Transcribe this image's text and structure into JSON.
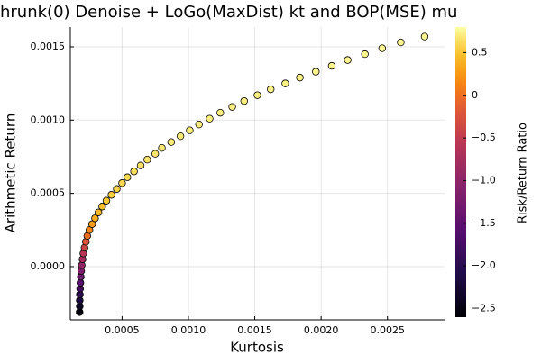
{
  "chart_data": {
    "type": "scatter",
    "title": "hrunk(0) Denoise + LoGo(MaxDist) kt and BOP(MSE) mu",
    "x_label": "Kurtosis",
    "y_label": "Arithmetic Return",
    "colorbar_label": "Risk/Return Ratio",
    "colormap": "inferno",
    "grid": true,
    "marker_edge_color": "#000000",
    "x": [
      0.00018,
      0.000181,
      0.000181,
      0.000182,
      0.000184,
      0.000186,
      0.000189,
      0.000192,
      0.000196,
      0.000202,
      0.000208,
      0.000217,
      0.000227,
      0.000238,
      0.000254,
      0.000274,
      0.000296,
      0.000322,
      0.00035,
      0.000382,
      0.00042,
      0.00046,
      0.0005,
      0.00054,
      0.00059,
      0.00064,
      0.00069,
      0.00075,
      0.0008,
      0.00087,
      0.00094,
      0.00101,
      0.00108,
      0.00116,
      0.00124,
      0.00133,
      0.00142,
      0.00152,
      0.00162,
      0.00173,
      0.00184,
      0.00196,
      0.00208,
      0.0022,
      0.00233,
      0.00246,
      0.0026,
      0.00278
    ],
    "y": [
      -0.00031,
      -0.00027,
      -0.00023,
      -0.00019,
      -0.00015,
      -0.00011,
      -7e-05,
      -3e-05,
      1e-05,
      5e-05,
      9e-05,
      0.00013,
      0.00017,
      0.00021,
      0.00025,
      0.00029,
      0.00033,
      0.00037,
      0.00041,
      0.00045,
      0.00049,
      0.00053,
      0.00057,
      0.00061,
      0.00065,
      0.00069,
      0.00073,
      0.00077,
      0.00081,
      0.00085,
      0.00089,
      0.00093,
      0.00097,
      0.00101,
      0.00105,
      0.00109,
      0.00113,
      0.00117,
      0.00121,
      0.00125,
      0.00129,
      0.00133,
      0.00137,
      0.00141,
      0.00145,
      0.00149,
      0.00153,
      0.00157
    ],
    "color_values": [
      -2.55,
      -2.35,
      -2.16,
      -1.96,
      -1.76,
      -1.57,
      -1.37,
      -1.18,
      -0.98,
      -0.78,
      -0.59,
      -0.39,
      -0.2,
      0,
      0.15,
      0.27,
      0.36,
      0.43,
      0.48,
      0.52,
      0.55,
      0.58,
      0.6,
      0.62,
      0.63,
      0.65,
      0.66,
      0.67,
      0.68,
      0.69,
      0.69,
      0.7,
      0.7,
      0.71,
      0.71,
      0.72,
      0.72,
      0.72,
      0.73,
      0.73,
      0.73,
      0.74,
      0.74,
      0.74,
      0.74,
      0.75,
      0.75,
      0.75
    ],
    "xlim": [
      0.00011,
      0.00293
    ],
    "ylim": [
      -0.000363,
      0.001635
    ],
    "clim": [
      -2.6,
      0.8
    ],
    "xticks": [
      0.0005,
      {
        "value": 0.001,
        "label": "0.0010"
      },
      0.0015,
      {
        "value": 0.002,
        "label": "0.0020"
      },
      0.0025
    ],
    "yticks": [
      {
        "value": 0,
        "label": "0.0000"
      },
      0.0005,
      {
        "value": 0.001,
        "label": "0.0010"
      },
      0.0015
    ],
    "cticks": [
      {
        "value": -2.5,
        "label": "−2.5"
      },
      {
        "value": -2,
        "label": "−2.0"
      },
      {
        "value": -1.5,
        "label": "−1.5"
      },
      {
        "value": -1,
        "label": "−1.0"
      },
      {
        "value": -0.5,
        "label": "−0.5"
      },
      0,
      0.5
    ]
  }
}
